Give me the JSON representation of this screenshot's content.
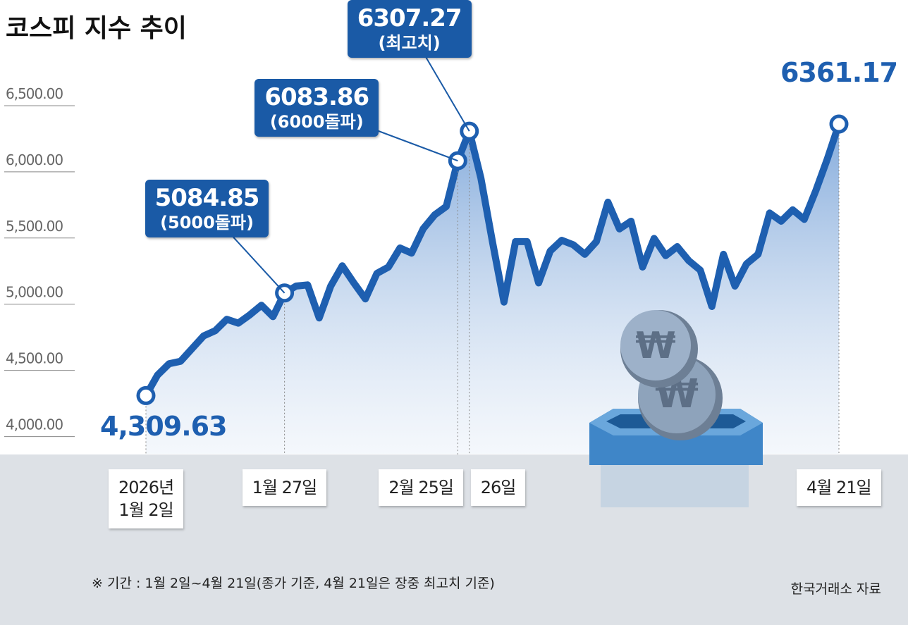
{
  "chart_data": {
    "type": "line",
    "title": "코스피 지수 추이",
    "categories": [
      "2026년\n1월 2일",
      null,
      null,
      null,
      null,
      null,
      null,
      null,
      null,
      null,
      null,
      null,
      "1월 27일",
      null,
      null,
      null,
      null,
      null,
      null,
      null,
      null,
      null,
      null,
      null,
      null,
      null,
      null,
      "2월 25일",
      "26일",
      null,
      null,
      null,
      null,
      null,
      null,
      null,
      null,
      null,
      null,
      null,
      null,
      null,
      null,
      null,
      null,
      null,
      null,
      null,
      null,
      null,
      null,
      null,
      null,
      null,
      null,
      null,
      null,
      null,
      null,
      null,
      "4월 21일"
    ],
    "values": [
      4309.63,
      4464,
      4550,
      4569,
      4665,
      4761,
      4800,
      4886,
      4857,
      4920,
      4992,
      4906,
      5084.85,
      5137,
      5146,
      4896,
      5137,
      5290,
      5161,
      5040,
      5233,
      5281,
      5425,
      5386,
      5569,
      5675,
      5738,
      6083.86,
      6307.27,
      5954,
      5473,
      5016,
      5473,
      5473,
      5161,
      5401,
      5483,
      5449,
      5377,
      5473,
      5771,
      5569,
      5627,
      5281,
      5497,
      5367,
      5435,
      5329,
      5257,
      4983,
      5377,
      5137,
      5305,
      5377,
      5689,
      5627,
      5713,
      5641,
      5858,
      6098,
      6361.17
    ],
    "value_labels": [
      "4,309.63",
      null,
      null,
      null,
      null,
      null,
      null,
      null,
      null,
      null,
      null,
      null,
      "5084.85",
      null,
      null,
      null,
      null,
      null,
      null,
      null,
      null,
      null,
      null,
      null,
      null,
      null,
      null,
      "6083.86",
      "6307.27",
      null,
      null,
      null,
      null,
      null,
      null,
      null,
      null,
      null,
      null,
      null,
      null,
      null,
      null,
      null,
      null,
      null,
      null,
      null,
      null,
      null,
      null,
      null,
      null,
      null,
      null,
      null,
      null,
      null,
      null,
      null,
      "6361.17"
    ],
    "value_notes": [
      null,
      null,
      null,
      null,
      null,
      null,
      null,
      null,
      null,
      null,
      null,
      null,
      "(5000돌파)",
      null,
      null,
      null,
      null,
      null,
      null,
      null,
      null,
      null,
      null,
      null,
      null,
      null,
      null,
      "(6000돌파)",
      "(최고치)",
      null,
      null,
      null,
      null,
      null,
      null,
      null,
      null,
      null,
      null,
      null,
      null,
      null,
      null,
      null,
      null,
      null,
      null,
      null,
      null,
      null,
      null,
      null,
      null,
      null,
      null,
      null,
      null,
      null,
      null,
      null,
      null
    ],
    "color": "#1e5fb0",
    "ylim": [
      3870,
      6750
    ],
    "yticks": [
      {
        "value": 4000,
        "label": "4,000.00"
      },
      {
        "value": 4500,
        "label": "4,500.00"
      },
      {
        "value": 5000,
        "label": "5,000.00"
      },
      {
        "value": 5500,
        "label": "5,500.00"
      },
      {
        "value": 6000,
        "label": "6,000.00"
      },
      {
        "value": 6500,
        "label": "6,500.00"
      }
    ],
    "grid": true,
    "footnote": "※ 기간 : 1월 2일~4월 21일(종가 기준, 4월 21일은 장중 최고치 기준)",
    "source": "한국거래소 자료"
  }
}
